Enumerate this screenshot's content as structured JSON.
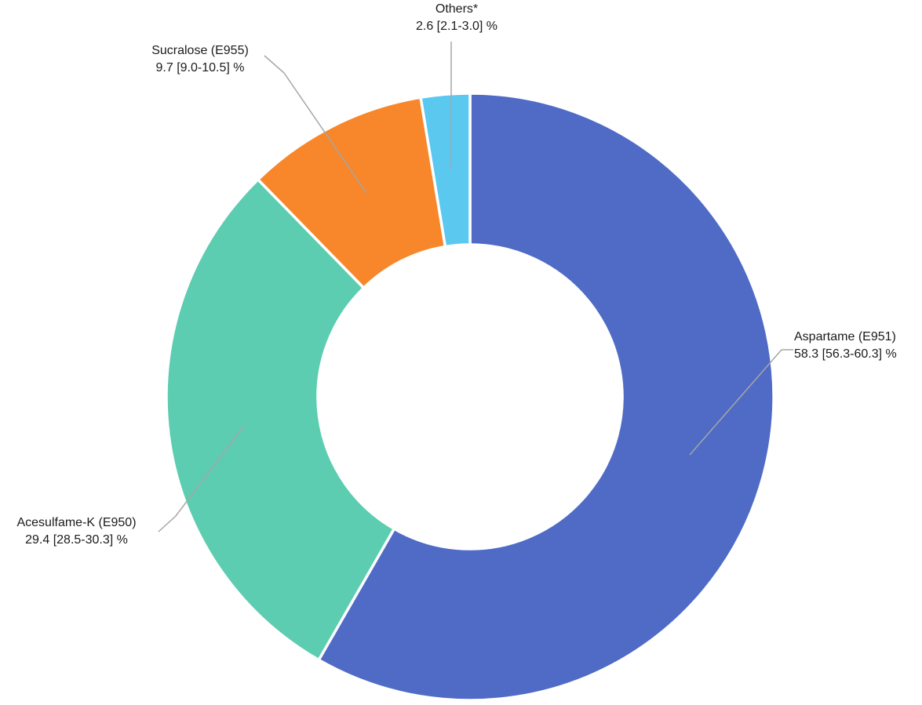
{
  "chart_data": {
    "type": "pie",
    "subtype": "donut",
    "title": "",
    "unit": "%",
    "hole_ratio": 0.5,
    "start_angle_deg": 0,
    "direction": "clockwise",
    "legend": "none",
    "segments": [
      {
        "label": "Aspartame (E951)",
        "value": 58.3,
        "ci_low": 56.3,
        "ci_high": 60.3,
        "value_label": "58.3 [56.3-60.3] %",
        "color": "#4F6BC6"
      },
      {
        "label": "Acesulfame-K (E950)",
        "value": 29.4,
        "ci_low": 28.5,
        "ci_high": 30.3,
        "value_label": "29.4 [28.5-30.3] %",
        "color": "#5CCDB0"
      },
      {
        "label": "Sucralose (E955)",
        "value": 9.7,
        "ci_low": 9.0,
        "ci_high": 10.5,
        "value_label": "9.7 [9.0-10.5] %",
        "color": "#F7872A"
      },
      {
        "label": "Others*",
        "value": 2.6,
        "ci_low": 2.1,
        "ci_high": 3.0,
        "value_label": "2.6 [2.1-3.0] %",
        "color": "#5BC8F0"
      }
    ],
    "slice_border_color": "#FFFFFF",
    "leader_line_color": "#A6A6A6"
  }
}
